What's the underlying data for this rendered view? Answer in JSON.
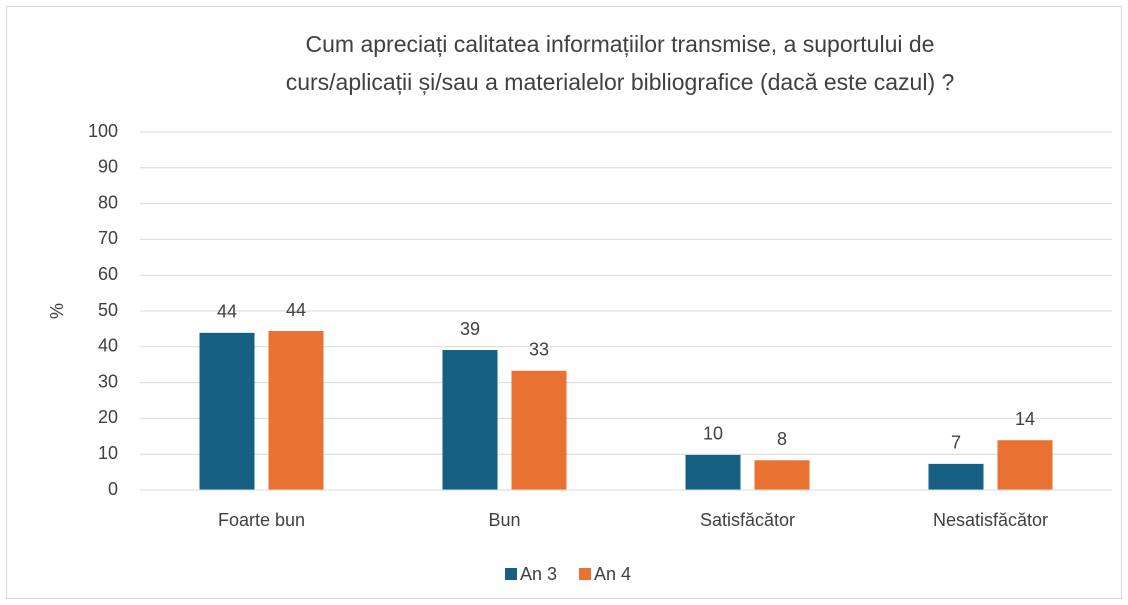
{
  "chart_data": {
    "type": "bar",
    "title": [
      "Cum apreciați calitatea informațiilor transmise, a suportului de",
      "curs/aplicații și/sau a materialelor bibliografice (dacă este cazul) ?"
    ],
    "y_label": "%",
    "categories": [
      "Foarte bun",
      "Bun",
      "Satisfăcător",
      "Nesatisfăcător"
    ],
    "series": [
      {
        "name": "An 3",
        "color": "#156082",
        "values": [
          43.9,
          39.1,
          9.8,
          7.3
        ],
        "value_labels": [
          "44",
          "39",
          "10",
          "7"
        ]
      },
      {
        "name": "An 4",
        "color": "#e97132",
        "values": [
          44.4,
          33.3,
          8.3,
          13.9
        ],
        "value_labels": [
          "44",
          "33",
          "8",
          "14"
        ]
      }
    ],
    "ylim": [
      0,
      100
    ],
    "yticks": [
      0,
      10,
      20,
      30,
      40,
      50,
      60,
      70,
      80,
      90,
      100
    ],
    "grid": true,
    "legend": "bottom"
  }
}
